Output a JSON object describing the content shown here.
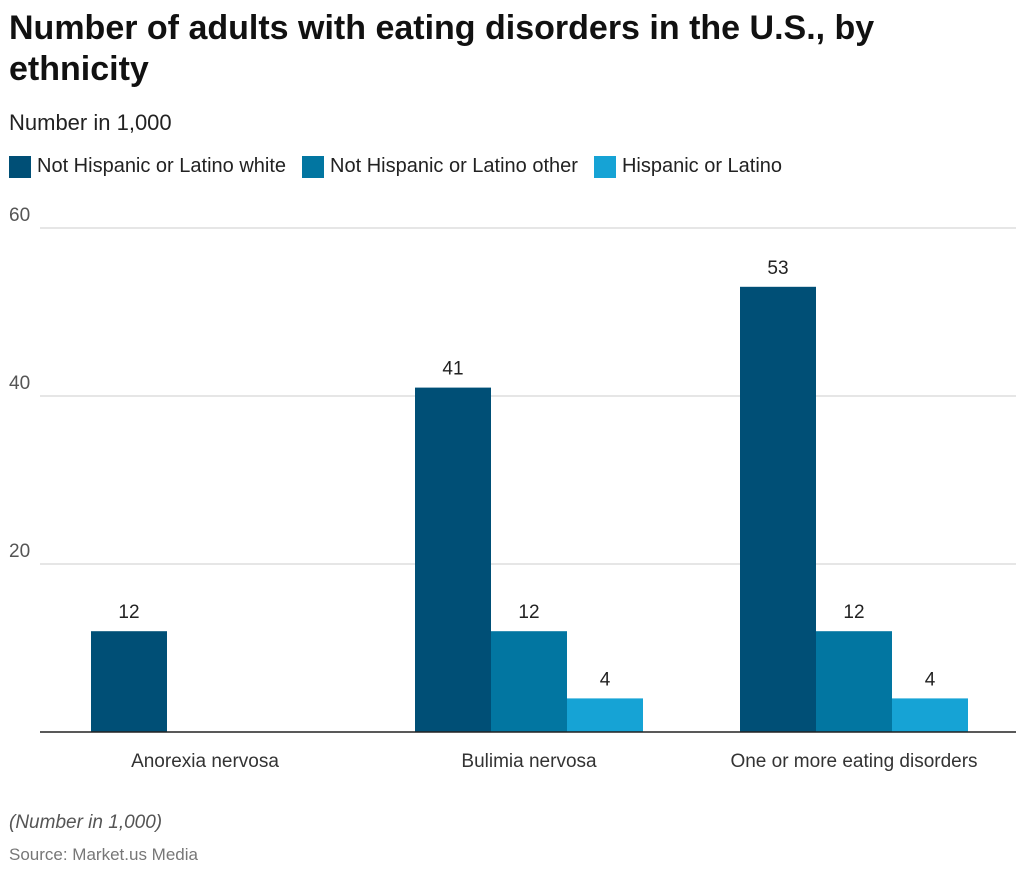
{
  "header": {
    "title": "Number of adults with eating disorders in the U.S., by ethnicity",
    "subtitle": "Number in 1,000"
  },
  "footer": {
    "note": "(Number in 1,000)",
    "source": "Source: Market.us Media"
  },
  "chart_data": {
    "type": "bar",
    "title": "Number of adults with eating disorders in the U.S., by ethnicity",
    "subtitle": "Number in 1,000",
    "categories": [
      "Anorexia nervosa",
      "Bulimia nervosa",
      "One or more eating disorders"
    ],
    "series": [
      {
        "name": "Not Hispanic or Latino white",
        "color": "#004f76",
        "values": [
          12,
          41,
          53
        ]
      },
      {
        "name": "Not Hispanic or Latino other",
        "color": "#0276a1",
        "values": [
          null,
          12,
          12
        ]
      },
      {
        "name": "Hispanic or Latino",
        "color": "#16a3d5",
        "values": [
          null,
          4,
          4
        ]
      }
    ],
    "data_labels": true,
    "yticks": [
      20,
      40,
      60
    ],
    "ylim": [
      0,
      60
    ],
    "grid": true,
    "legend_position": "top-left"
  }
}
